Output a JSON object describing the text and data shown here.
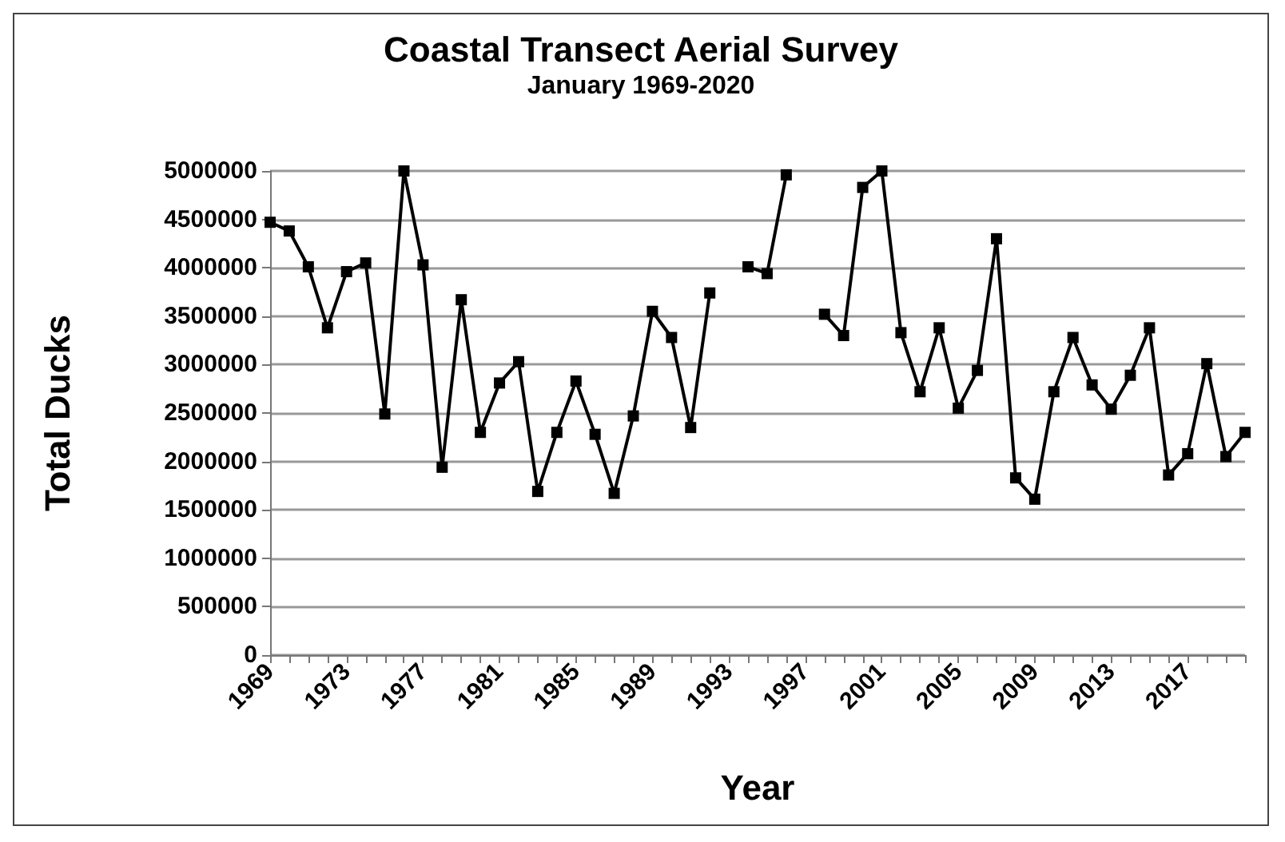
{
  "chart_data": {
    "type": "line",
    "title": "Coastal Transect Aerial Survey",
    "subtitle": "January 1969-2020",
    "xlabel": "Year",
    "ylabel": "Total Ducks",
    "categories": [
      "1969",
      null,
      null,
      null,
      "1973",
      null,
      null,
      null,
      "1977",
      null,
      null,
      null,
      "1981",
      null,
      null,
      null,
      "1985",
      null,
      null,
      null,
      "1989",
      null,
      null,
      null,
      "1993",
      null,
      null,
      null,
      "1997",
      null,
      null,
      null,
      "2001",
      null,
      null,
      null,
      "2005",
      null,
      null,
      null,
      "2009",
      null,
      null,
      null,
      "2013",
      null,
      null,
      null,
      "2017",
      null,
      null,
      null
    ],
    "series": [
      {
        "color": "#000000",
        "values": [
          4470000,
          4380000,
          4010000,
          3380000,
          3960000,
          4050000,
          2490000,
          5000000,
          4030000,
          1940000,
          3670000,
          2300000,
          2810000,
          3030000,
          1690000,
          2300000,
          2830000,
          2280000,
          1670000,
          2470000,
          3550000,
          3280000,
          2350000,
          3740000,
          null,
          4010000,
          3940000,
          4960000,
          null,
          3520000,
          3300000,
          4830000,
          5000000,
          3330000,
          2720000,
          3380000,
          2550000,
          2940000,
          4300000,
          1830000,
          1610000,
          2720000,
          3280000,
          2790000,
          2540000,
          2890000,
          3380000,
          1860000,
          2080000,
          3010000,
          2050000,
          2300000
        ]
      }
    ],
    "ylim": [
      0,
      5000000
    ],
    "yticks": [
      0,
      500000,
      1000000,
      1500000,
      2000000,
      2500000,
      3000000,
      3500000,
      4000000,
      4500000,
      5000000
    ],
    "grid": "y",
    "marker": "square",
    "line_style": "solid"
  }
}
